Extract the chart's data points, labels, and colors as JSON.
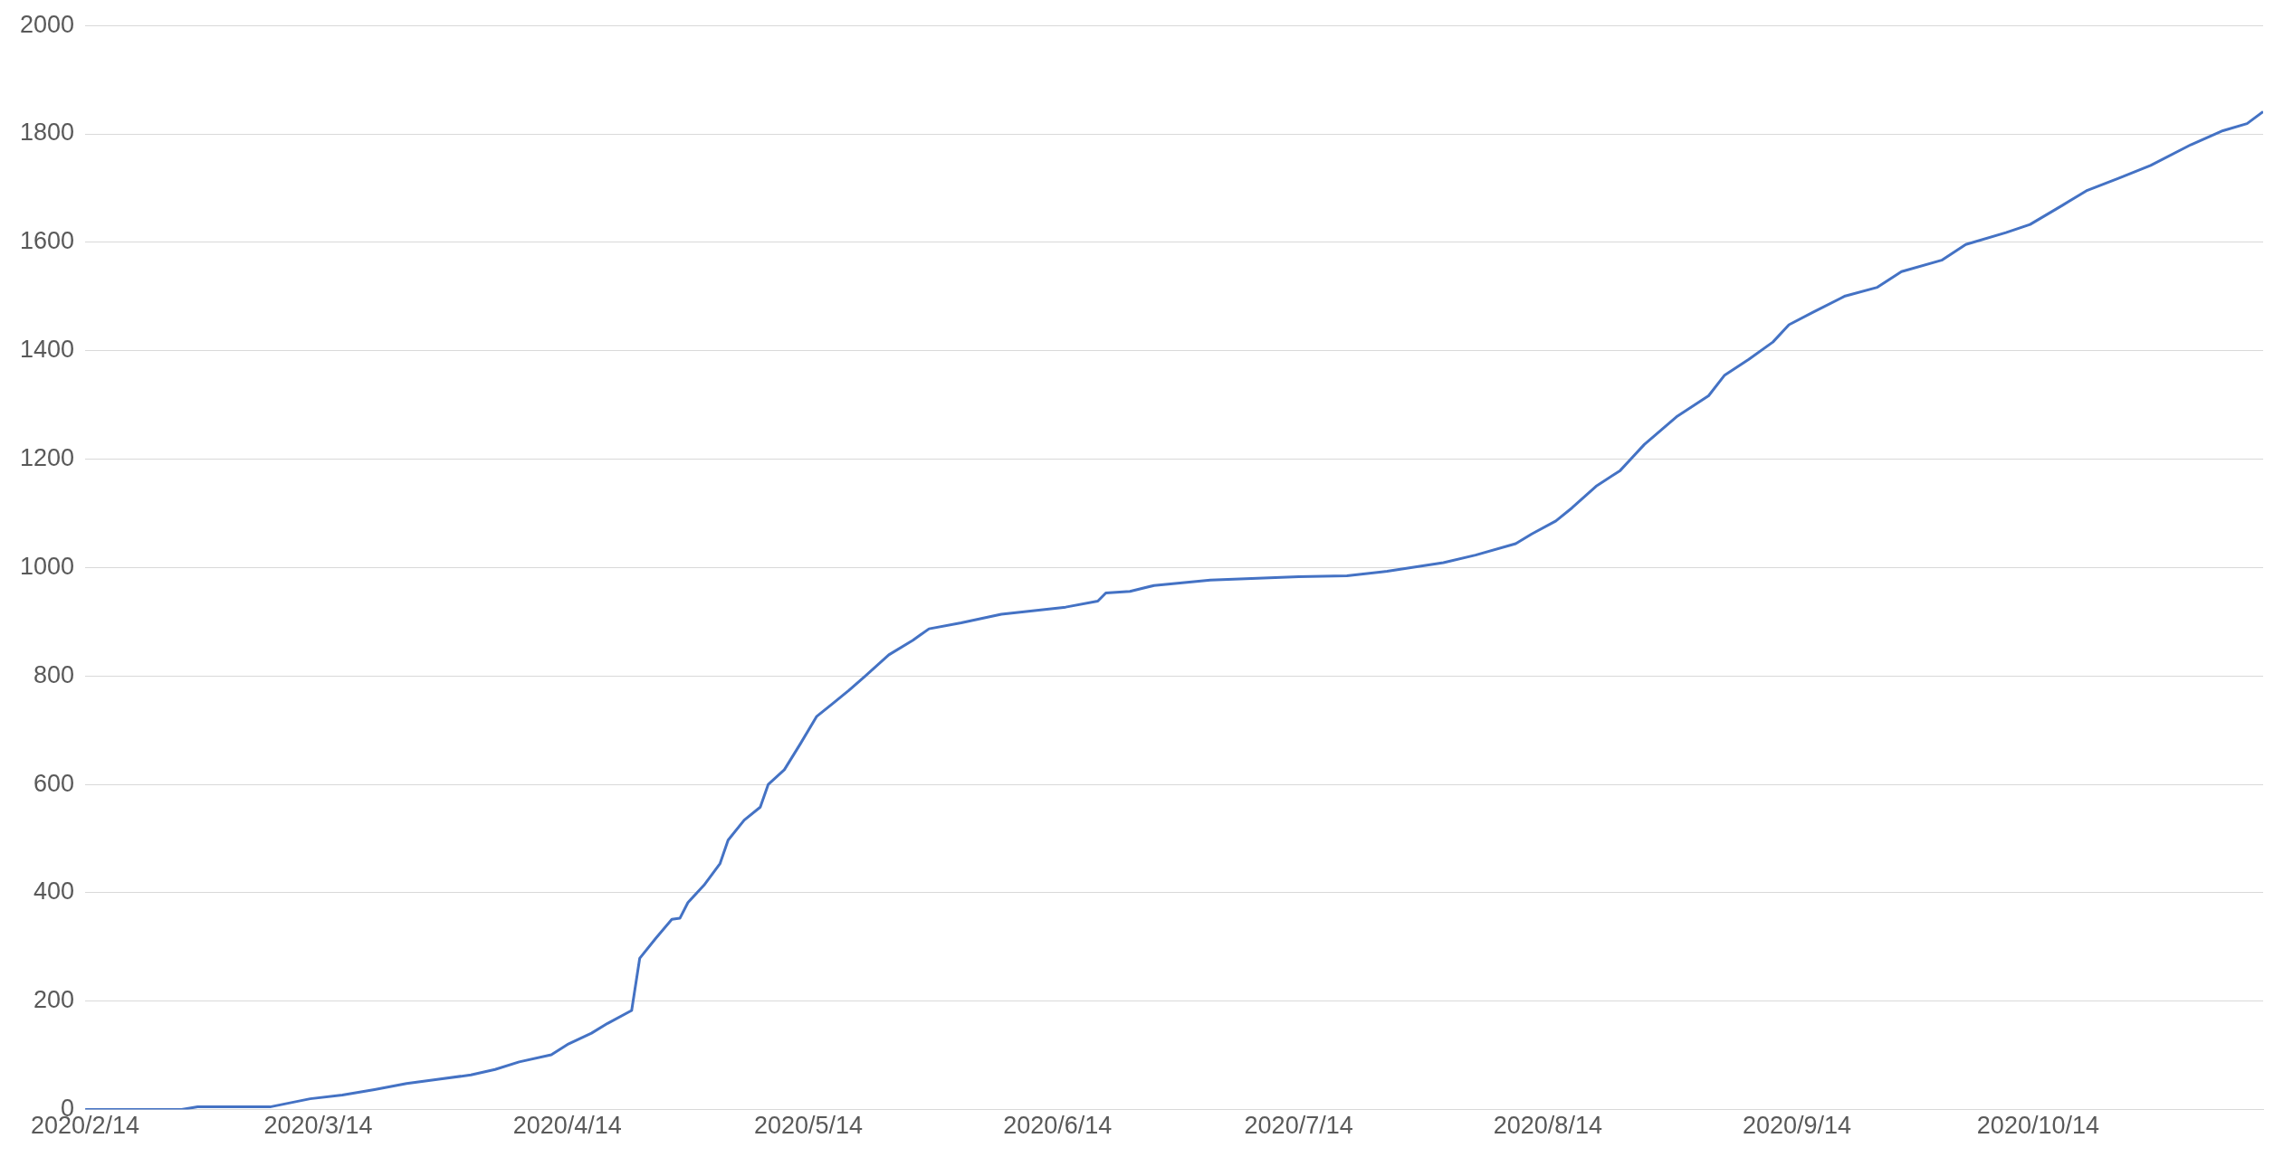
{
  "chart_data": {
    "type": "line",
    "x": [
      "2020-02-14",
      "2020-02-26",
      "2020-02-28",
      "2020-03-08",
      "2020-03-13",
      "2020-03-17",
      "2020-03-21",
      "2020-03-25",
      "2020-03-29",
      "2020-04-02",
      "2020-04-05",
      "2020-04-08",
      "2020-04-12",
      "2020-04-14",
      "2020-04-17",
      "2020-04-19",
      "2020-04-22",
      "2020-04-23",
      "2020-04-25",
      "2020-04-27",
      "2020-04-28",
      "2020-04-29",
      "2020-05-01",
      "2020-05-03",
      "2020-05-04",
      "2020-05-06",
      "2020-05-08",
      "2020-05-09",
      "2020-05-11",
      "2020-05-13",
      "2020-05-15",
      "2020-05-17",
      "2020-05-19",
      "2020-05-21",
      "2020-05-24",
      "2020-05-27",
      "2020-05-29",
      "2020-06-02",
      "2020-06-07",
      "2020-06-15",
      "2020-06-19",
      "2020-06-20",
      "2020-06-23",
      "2020-06-26",
      "2020-07-03",
      "2020-07-14",
      "2020-07-20",
      "2020-07-25",
      "2020-08-01",
      "2020-08-05",
      "2020-08-10",
      "2020-08-12",
      "2020-08-15",
      "2020-08-17",
      "2020-08-20",
      "2020-08-23",
      "2020-08-26",
      "2020-08-30",
      "2020-09-03",
      "2020-09-05",
      "2020-09-08",
      "2020-09-11",
      "2020-09-13",
      "2020-09-16",
      "2020-09-20",
      "2020-09-24",
      "2020-09-27",
      "2020-10-02",
      "2020-10-05",
      "2020-10-10",
      "2020-10-13",
      "2020-10-17",
      "2020-10-20",
      "2020-10-24",
      "2020-10-28",
      "2020-11-02",
      "2020-11-06",
      "2020-11-09",
      "2020-11-11"
    ],
    "series": [
      {
        "color": "#4472c4",
        "values": [
          0,
          0,
          5,
          5,
          20,
          27,
          37,
          48,
          56,
          64,
          74,
          88,
          101,
          120,
          141,
          159,
          183,
          279,
          316,
          351,
          353,
          382,
          414,
          454,
          497,
          534,
          558,
          600,
          627,
          675,
          725,
          749,
          773,
          799,
          839,
          866,
          887,
          898,
          914,
          927,
          938,
          953,
          956,
          967,
          977,
          983,
          985,
          993,
          1009,
          1023,
          1044,
          1062,
          1086,
          1110,
          1150,
          1179,
          1227,
          1278,
          1317,
          1355,
          1384,
          1416,
          1448,
          1471,
          1501,
          1517,
          1546,
          1567,
          1596,
          1618,
          1633,
          1668,
          1695,
          1718,
          1742,
          1780,
          1806,
          1819,
          1841
        ]
      }
    ],
    "xlim": [
      "2020-02-14",
      "2020-11-11"
    ],
    "xticks": [
      {
        "value": "2020-02-14",
        "label": "2020/2/14"
      },
      {
        "value": "2020-03-14",
        "label": "2020/3/14"
      },
      {
        "value": "2020-04-14",
        "label": "2020/4/14"
      },
      {
        "value": "2020-05-14",
        "label": "2020/5/14"
      },
      {
        "value": "2020-06-14",
        "label": "2020/6/14"
      },
      {
        "value": "2020-07-14",
        "label": "2020/7/14"
      },
      {
        "value": "2020-08-14",
        "label": "2020/8/14"
      },
      {
        "value": "2020-09-14",
        "label": "2020/9/14"
      },
      {
        "value": "2020-10-14",
        "label": "2020/10/14"
      }
    ],
    "ylim": [
      0,
      2000
    ],
    "yticks": [
      0,
      200,
      400,
      600,
      800,
      1000,
      1200,
      1400,
      1600,
      1800,
      2000
    ],
    "grid": "y",
    "legend": false,
    "marker": "none",
    "line_style": "solid"
  }
}
